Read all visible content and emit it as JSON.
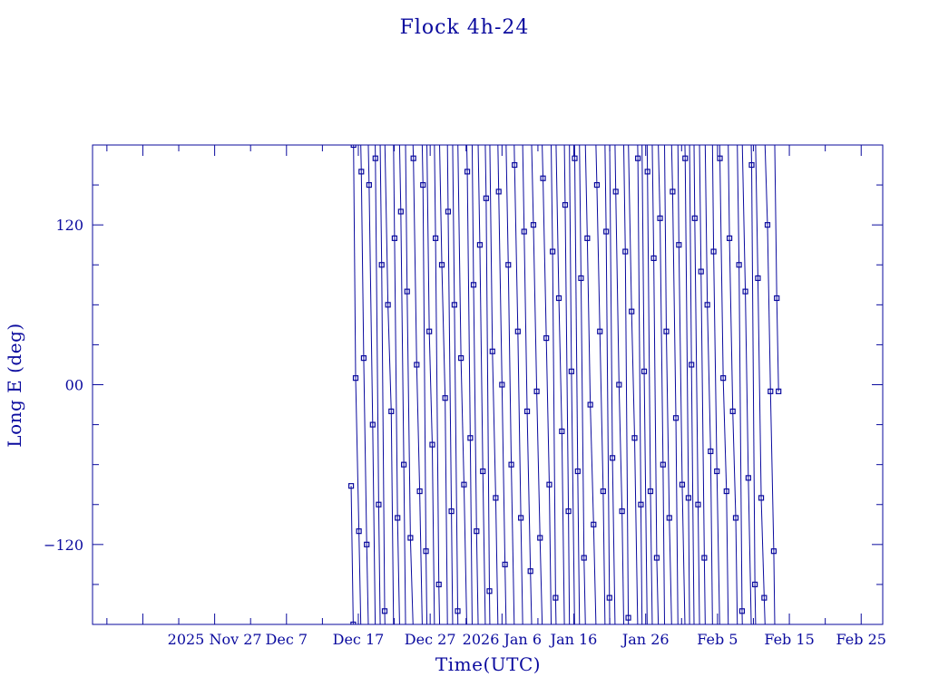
{
  "colors": {
    "foreground": "#0a0a9e",
    "background": "#ffffff"
  },
  "chart_data": {
    "type": "line",
    "title": "Flock 4h-24",
    "xlabel": "Time(UTC)",
    "ylabel": "Long E (deg)",
    "x_axis_kind": "date",
    "xlim": [
      "2025-11-10",
      "2026-02-28"
    ],
    "ylim": [
      -180,
      180
    ],
    "x_ticks": [
      {
        "date": "2025-11-27",
        "label": "2025 Nov 27"
      },
      {
        "date": "2025-12-07",
        "label": "Dec  7"
      },
      {
        "date": "2025-12-17",
        "label": "Dec 17"
      },
      {
        "date": "2025-12-27",
        "label": "Dec 27"
      },
      {
        "date": "2026-01-06",
        "label": "2026 Jan  6"
      },
      {
        "date": "2026-01-16",
        "label": "Jan 16"
      },
      {
        "date": "2026-01-26",
        "label": "Jan 26"
      },
      {
        "date": "2026-02-05",
        "label": "Feb  5"
      },
      {
        "date": "2026-02-15",
        "label": "Feb 15"
      },
      {
        "date": "2026-02-25",
        "label": "Feb 25"
      }
    ],
    "y_ticks": [
      {
        "value": 120,
        "label": "120"
      },
      {
        "value": 0,
        "label": "00"
      },
      {
        "value": -120,
        "label": "−120"
      }
    ],
    "grid": false,
    "legend": "none",
    "series": [
      {
        "description_note": "",
        "x_start": "2025-12-16",
        "x_end": "2026-02-13",
        "longitude_drift_deg_per_day": -640,
        "marker": "square",
        "points": [
          {
            "x": "2025-12-16T00:00",
            "y": -76
          },
          {
            "x": "2025-12-16T07:00",
            "y": -180
          },
          {
            "x": "2025-12-16T08:00",
            "y": 180
          },
          {
            "x": "2025-12-16T15:00",
            "y": 5
          },
          {
            "x": "2025-12-17T02:00",
            "y": -110
          },
          {
            "x": "2025-12-17T10:00",
            "y": 160
          },
          {
            "x": "2025-12-17T18:00",
            "y": 20
          },
          {
            "x": "2025-12-18T04:00",
            "y": -120
          },
          {
            "x": "2025-12-18T12:00",
            "y": 150
          },
          {
            "x": "2025-12-19T00:00",
            "y": -30
          },
          {
            "x": "2025-12-19T09:00",
            "y": 170
          },
          {
            "x": "2025-12-19T20:00",
            "y": -90
          },
          {
            "x": "2025-12-20T06:00",
            "y": 90
          },
          {
            "x": "2025-12-20T16:00",
            "y": -170
          },
          {
            "x": "2025-12-21T03:00",
            "y": 60
          },
          {
            "x": "2025-12-21T14:00",
            "y": -20
          },
          {
            "x": "2025-12-22T01:00",
            "y": 110
          },
          {
            "x": "2025-12-22T11:00",
            "y": -100
          },
          {
            "x": "2025-12-22T22:00",
            "y": 130
          },
          {
            "x": "2025-12-23T08:00",
            "y": -60
          },
          {
            "x": "2025-12-23T19:00",
            "y": 70
          },
          {
            "x": "2025-12-24T06:00",
            "y": -115
          },
          {
            "x": "2025-12-24T16:00",
            "y": 170
          },
          {
            "x": "2025-12-25T03:00",
            "y": 15
          },
          {
            "x": "2025-12-25T13:00",
            "y": -80
          },
          {
            "x": "2025-12-26T00:00",
            "y": 150
          },
          {
            "x": "2025-12-26T10:00",
            "y": -125
          },
          {
            "x": "2025-12-26T21:00",
            "y": 40
          },
          {
            "x": "2025-12-27T07:00",
            "y": -45
          },
          {
            "x": "2025-12-27T18:00",
            "y": 110
          },
          {
            "x": "2025-12-28T05:00",
            "y": -150
          },
          {
            "x": "2025-12-28T15:00",
            "y": 90
          },
          {
            "x": "2025-12-29T02:00",
            "y": -10
          },
          {
            "x": "2025-12-29T12:00",
            "y": 130
          },
          {
            "x": "2025-12-29T23:00",
            "y": -95
          },
          {
            "x": "2025-12-30T09:00",
            "y": 60
          },
          {
            "x": "2025-12-30T20:00",
            "y": -170
          },
          {
            "x": "2025-12-31T07:00",
            "y": 20
          },
          {
            "x": "2025-12-31T17:00",
            "y": -75
          },
          {
            "x": "2026-01-01T04:00",
            "y": 160
          },
          {
            "x": "2026-01-01T14:00",
            "y": -40
          },
          {
            "x": "2026-01-02T01:00",
            "y": 75
          },
          {
            "x": "2026-01-02T11:00",
            "y": -110
          },
          {
            "x": "2026-01-02T22:00",
            "y": 105
          },
          {
            "x": "2026-01-03T08:00",
            "y": -65
          },
          {
            "x": "2026-01-03T19:00",
            "y": 140
          },
          {
            "x": "2026-01-04T06:00",
            "y": -155
          },
          {
            "x": "2026-01-04T16:00",
            "y": 25
          },
          {
            "x": "2026-01-05T03:00",
            "y": -85
          },
          {
            "x": "2026-01-05T13:00",
            "y": 145
          },
          {
            "x": "2026-01-06T00:00",
            "y": 0
          },
          {
            "x": "2026-01-06T10:00",
            "y": -135
          },
          {
            "x": "2026-01-06T21:00",
            "y": 90
          },
          {
            "x": "2026-01-07T07:00",
            "y": -60
          },
          {
            "x": "2026-01-07T18:00",
            "y": 165
          },
          {
            "x": "2026-01-08T05:00",
            "y": 40
          },
          {
            "x": "2026-01-08T15:00",
            "y": -100
          },
          {
            "x": "2026-01-09T02:00",
            "y": 115
          },
          {
            "x": "2026-01-09T12:00",
            "y": -20
          },
          {
            "x": "2026-01-09T23:00",
            "y": -140
          },
          {
            "x": "2026-01-10T09:00",
            "y": 120
          },
          {
            "x": "2026-01-10T20:00",
            "y": -5
          },
          {
            "x": "2026-01-11T07:00",
            "y": -115
          },
          {
            "x": "2026-01-11T17:00",
            "y": 155
          },
          {
            "x": "2026-01-12T04:00",
            "y": 35
          },
          {
            "x": "2026-01-12T14:00",
            "y": -75
          },
          {
            "x": "2026-01-13T01:00",
            "y": 100
          },
          {
            "x": "2026-01-13T11:00",
            "y": -160
          },
          {
            "x": "2026-01-13T22:00",
            "y": 65
          },
          {
            "x": "2026-01-14T08:00",
            "y": -35
          },
          {
            "x": "2026-01-14T19:00",
            "y": 135
          },
          {
            "x": "2026-01-15T06:00",
            "y": -95
          },
          {
            "x": "2026-01-15T16:00",
            "y": 10
          },
          {
            "x": "2026-01-16T03:00",
            "y": 170
          },
          {
            "x": "2026-01-16T13:00",
            "y": -65
          },
          {
            "x": "2026-01-17T00:00",
            "y": 80
          },
          {
            "x": "2026-01-17T10:00",
            "y": -130
          },
          {
            "x": "2026-01-17T21:00",
            "y": 110
          },
          {
            "x": "2026-01-18T07:00",
            "y": -15
          },
          {
            "x": "2026-01-18T18:00",
            "y": -105
          },
          {
            "x": "2026-01-19T05:00",
            "y": 150
          },
          {
            "x": "2026-01-19T15:00",
            "y": 40
          },
          {
            "x": "2026-01-20T02:00",
            "y": -80
          },
          {
            "x": "2026-01-20T12:00",
            "y": 115
          },
          {
            "x": "2026-01-20T23:00",
            "y": -160
          },
          {
            "x": "2026-01-21T09:00",
            "y": -55
          },
          {
            "x": "2026-01-21T20:00",
            "y": 145
          },
          {
            "x": "2026-01-22T07:00",
            "y": 0
          },
          {
            "x": "2026-01-22T17:00",
            "y": -95
          },
          {
            "x": "2026-01-23T04:00",
            "y": 100
          },
          {
            "x": "2026-01-23T14:00",
            "y": -175
          },
          {
            "x": "2026-01-24T01:00",
            "y": 55
          },
          {
            "x": "2026-01-24T11:00",
            "y": -40
          },
          {
            "x": "2026-01-24T22:00",
            "y": 170
          },
          {
            "x": "2026-01-25T08:00",
            "y": -90
          },
          {
            "x": "2026-01-25T19:00",
            "y": 10
          },
          {
            "x": "2026-01-26T06:00",
            "y": 160
          },
          {
            "x": "2026-01-26T16:00",
            "y": -80
          },
          {
            "x": "2026-01-27T03:00",
            "y": 95
          },
          {
            "x": "2026-01-27T13:00",
            "y": -130
          },
          {
            "x": "2026-01-28T00:00",
            "y": 125
          },
          {
            "x": "2026-01-28T10:00",
            "y": -60
          },
          {
            "x": "2026-01-28T21:00",
            "y": 40
          },
          {
            "x": "2026-01-29T07:00",
            "y": -100
          },
          {
            "x": "2026-01-29T18:00",
            "y": 145
          },
          {
            "x": "2026-01-30T05:00",
            "y": -25
          },
          {
            "x": "2026-01-30T15:00",
            "y": 105
          },
          {
            "x": "2026-01-31T02:00",
            "y": -75
          },
          {
            "x": "2026-01-31T12:00",
            "y": 170
          },
          {
            "x": "2026-01-31T23:00",
            "y": -85
          },
          {
            "x": "2026-02-01T09:00",
            "y": 15
          },
          {
            "x": "2026-02-01T20:00",
            "y": 125
          },
          {
            "x": "2026-02-02T07:00",
            "y": -90
          },
          {
            "x": "2026-02-02T17:00",
            "y": 85
          },
          {
            "x": "2026-02-03T04:00",
            "y": -130
          },
          {
            "x": "2026-02-03T14:00",
            "y": 60
          },
          {
            "x": "2026-02-04T01:00",
            "y": -50
          },
          {
            "x": "2026-02-04T11:00",
            "y": 100
          },
          {
            "x": "2026-02-04T22:00",
            "y": -65
          },
          {
            "x": "2026-02-05T08:00",
            "y": 170
          },
          {
            "x": "2026-02-05T19:00",
            "y": 5
          },
          {
            "x": "2026-02-06T06:00",
            "y": -80
          },
          {
            "x": "2026-02-06T16:00",
            "y": 110
          },
          {
            "x": "2026-02-07T03:00",
            "y": -20
          },
          {
            "x": "2026-02-07T13:00",
            "y": -100
          },
          {
            "x": "2026-02-08T00:00",
            "y": 90
          },
          {
            "x": "2026-02-08T10:00",
            "y": -170
          },
          {
            "x": "2026-02-08T21:00",
            "y": 70
          },
          {
            "x": "2026-02-09T07:00",
            "y": -70
          },
          {
            "x": "2026-02-09T18:00",
            "y": 165
          },
          {
            "x": "2026-02-10T05:00",
            "y": -150
          },
          {
            "x": "2026-02-10T15:00",
            "y": 80
          },
          {
            "x": "2026-02-11T02:00",
            "y": -85
          },
          {
            "x": "2026-02-11T12:00",
            "y": -160
          },
          {
            "x": "2026-02-11T23:00",
            "y": 120
          },
          {
            "x": "2026-02-12T09:00",
            "y": -5
          },
          {
            "x": "2026-02-12T20:00",
            "y": -125
          },
          {
            "x": "2026-02-13T06:00",
            "y": 65
          },
          {
            "x": "2026-02-13T12:00",
            "y": -5
          }
        ]
      }
    ]
  }
}
